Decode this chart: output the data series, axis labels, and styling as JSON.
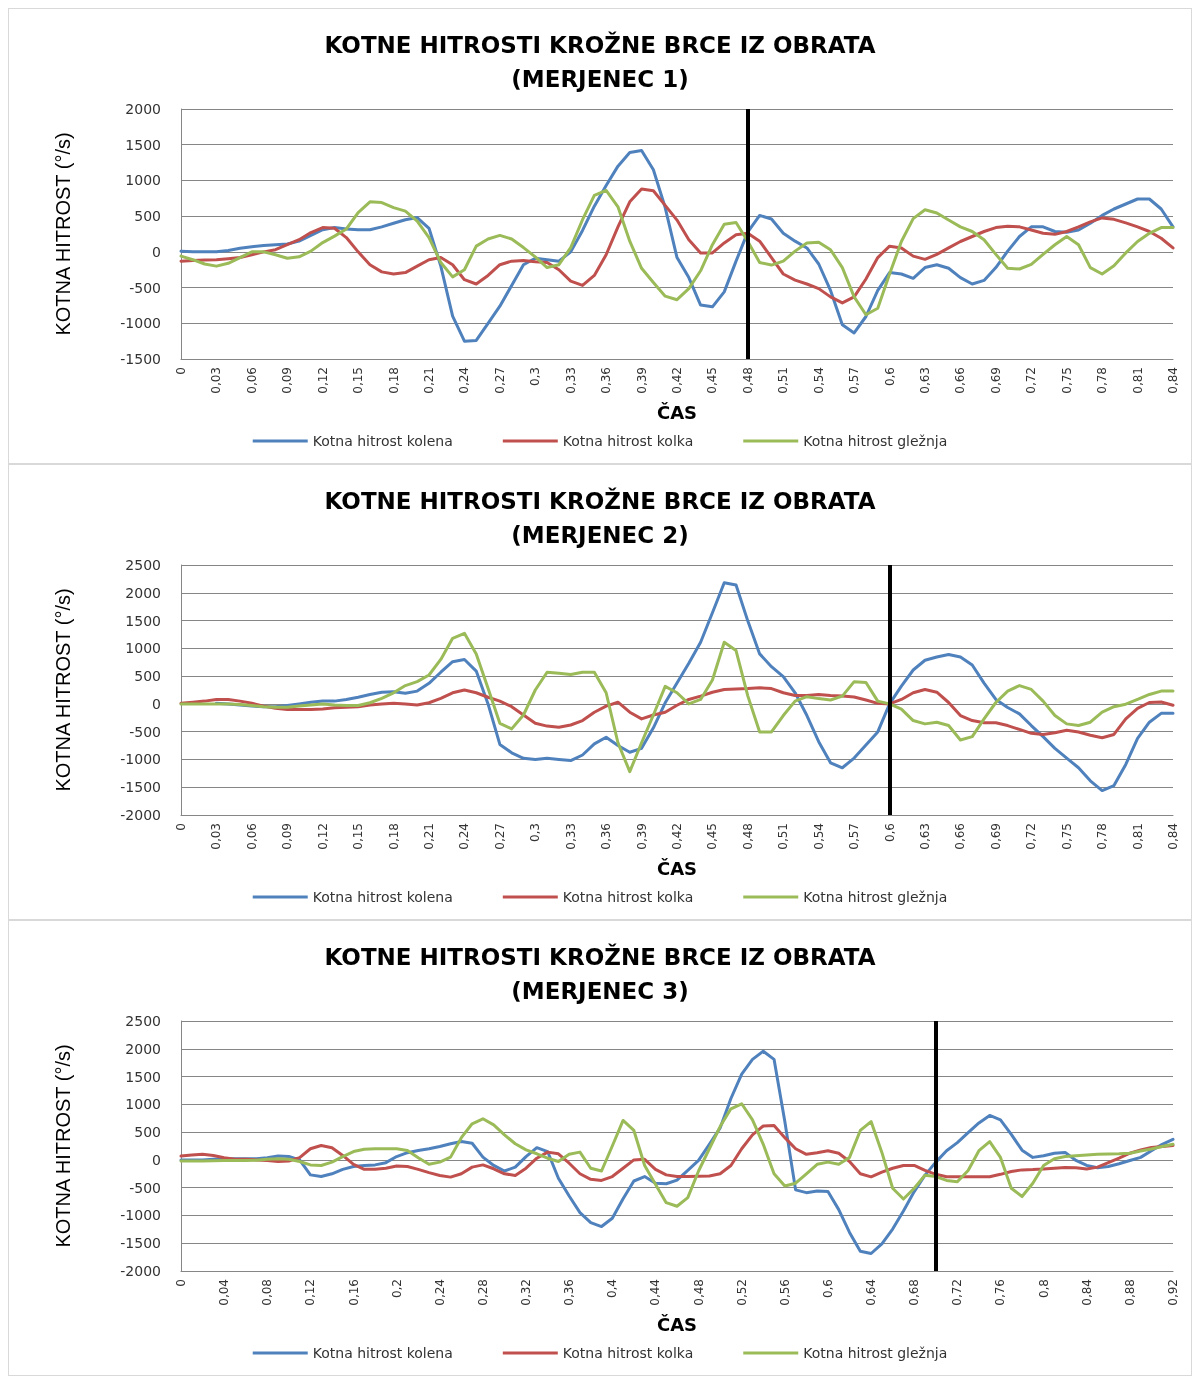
{
  "chart_data": [
    {
      "type": "line",
      "title": "KOTNE HITROSTI KROŽNE BRCE IZ OBRATA\n(MERJENEC 1)",
      "xlabel": "ČAS",
      "ylabel": "KOTNA HITROST (°/s)",
      "x": [
        0,
        0.01,
        0.02,
        0.03,
        0.04,
        0.05,
        0.06,
        0.07,
        0.08,
        0.09,
        0.1,
        0.11,
        0.12,
        0.13,
        0.14,
        0.15,
        0.16,
        0.17,
        0.18,
        0.19,
        0.2,
        0.21,
        0.22,
        0.23,
        0.24,
        0.25,
        0.26,
        0.27,
        0.28,
        0.29,
        0.3,
        0.31,
        0.32,
        0.33,
        0.34,
        0.35,
        0.36,
        0.37,
        0.38,
        0.39,
        0.4,
        0.41,
        0.42,
        0.43,
        0.44,
        0.45,
        0.46,
        0.47,
        0.48,
        0.49,
        0.5,
        0.51,
        0.52,
        0.53,
        0.54,
        0.55,
        0.56,
        0.57,
        0.58,
        0.59,
        0.6,
        0.61,
        0.62,
        0.63,
        0.64,
        0.65,
        0.66,
        0.67,
        0.68,
        0.69,
        0.7,
        0.71,
        0.72,
        0.73,
        0.74,
        0.75,
        0.76,
        0.77,
        0.78,
        0.79,
        0.8,
        0.81,
        0.82,
        0.83,
        0.84
      ],
      "series": [
        {
          "name": "Kotna hitrost kolena",
          "color": "#4f81bd",
          "values": [
            10,
            0,
            0,
            0,
            20,
            50,
            70,
            90,
            100,
            110,
            150,
            230,
            310,
            340,
            320,
            310,
            310,
            350,
            400,
            450,
            480,
            330,
            -200,
            -900,
            -1250,
            -1240,
            -1000,
            -760,
            -470,
            -180,
            -90,
            -110,
            -130,
            0,
            300,
            640,
            930,
            1200,
            1390,
            1420,
            1150,
            620,
            -80,
            -360,
            -745,
            -770,
            -560,
            -130,
            280,
            510,
            460,
            260,
            150,
            55,
            -170,
            -540,
            -1020,
            -1135,
            -905,
            -540,
            -290,
            -310,
            -370,
            -220,
            -180,
            -230,
            -360,
            -450,
            -400,
            -220,
            10,
            215,
            350,
            350,
            285,
            275,
            305,
            400,
            510,
            600,
            670,
            740,
            740,
            600,
            350
          ]
        },
        {
          "name": "Kotna hitrost kolka",
          "color": "#c0504d",
          "values": [
            -130,
            -120,
            -115,
            -110,
            -95,
            -80,
            -40,
            0,
            30,
            100,
            170,
            270,
            340,
            330,
            200,
            0,
            -180,
            -280,
            -310,
            -290,
            -200,
            -110,
            -80,
            -180,
            -390,
            -450,
            -330,
            -180,
            -130,
            -120,
            -140,
            -150,
            -250,
            -410,
            -470,
            -330,
            -40,
            350,
            700,
            880,
            855,
            650,
            445,
            170,
            -15,
            -15,
            125,
            240,
            260,
            150,
            -80,
            -310,
            -395,
            -450,
            -515,
            -630,
            -715,
            -630,
            -380,
            -80,
            80,
            55,
            -60,
            -105,
            -35,
            55,
            145,
            215,
            285,
            340,
            360,
            350,
            305,
            260,
            245,
            285,
            350,
            420,
            475,
            455,
            405,
            350,
            285,
            190,
            55
          ]
        },
        {
          "name": "Kotna hitrost gležnja",
          "color": "#9bbb59",
          "values": [
            -60,
            -110,
            -170,
            -200,
            -160,
            -80,
            0,
            0,
            -40,
            -90,
            -70,
            10,
            130,
            220,
            320,
            550,
            700,
            690,
            620,
            570,
            430,
            200,
            -150,
            -350,
            -250,
            80,
            180,
            230,
            180,
            60,
            -70,
            -220,
            -180,
            60,
            450,
            790,
            860,
            630,
            150,
            -230,
            -430,
            -620,
            -670,
            -515,
            -265,
            100,
            385,
            410,
            145,
            -150,
            -185,
            -130,
            10,
            125,
            135,
            30,
            -220,
            -630,
            -880,
            -790,
            -310,
            145,
            465,
            590,
            545,
            445,
            350,
            285,
            170,
            -35,
            -230,
            -240,
            -175,
            -35,
            100,
            215,
            100,
            -220,
            -310,
            -195,
            -15,
            145,
            260,
            340,
            340
          ]
        }
      ],
      "xlim": [
        0,
        0.84
      ],
      "xticks": [
        {
          "value": 0,
          "label": "0"
        },
        {
          "value": 0.03,
          "label": "0,03"
        },
        {
          "value": 0.06,
          "label": "0,06"
        },
        {
          "value": 0.09,
          "label": "0,09"
        },
        {
          "value": 0.12,
          "label": "0,12"
        },
        {
          "value": 0.15,
          "label": "0,15"
        },
        {
          "value": 0.18,
          "label": "0,18"
        },
        {
          "value": 0.21,
          "label": "0,21"
        },
        {
          "value": 0.24,
          "label": "0,24"
        },
        {
          "value": 0.27,
          "label": "0,27"
        },
        {
          "value": 0.3,
          "label": "0,3"
        },
        {
          "value": 0.33,
          "label": "0,33"
        },
        {
          "value": 0.36,
          "label": "0,36"
        },
        {
          "value": 0.39,
          "label": "0,39"
        },
        {
          "value": 0.42,
          "label": "0,42"
        },
        {
          "value": 0.45,
          "label": "0,45"
        },
        {
          "value": 0.48,
          "label": "0,48"
        },
        {
          "value": 0.51,
          "label": "0,51"
        },
        {
          "value": 0.54,
          "label": "0,54"
        },
        {
          "value": 0.57,
          "label": "0,57"
        },
        {
          "value": 0.6,
          "label": "0,6"
        },
        {
          "value": 0.63,
          "label": "0,63"
        },
        {
          "value": 0.66,
          "label": "0,66"
        },
        {
          "value": 0.69,
          "label": "0,69"
        },
        {
          "value": 0.72,
          "label": "0,72"
        },
        {
          "value": 0.75,
          "label": "0,75"
        },
        {
          "value": 0.78,
          "label": "0,78"
        },
        {
          "value": 0.81,
          "label": "0,81"
        },
        {
          "value": 0.84,
          "label": "0,84"
        }
      ],
      "ylim": [
        -1500,
        2000
      ],
      "yticks": [
        -1500,
        -1000,
        -500,
        0,
        500,
        1000,
        1500,
        2000
      ],
      "ref_lines": [
        {
          "axis": "x",
          "value": 0.48,
          "color": "#000000"
        }
      ],
      "grid": "y",
      "legend": "bottom",
      "marker": "none",
      "line_style": "solid"
    },
    {
      "type": "line",
      "title": "KOTNE HITROSTI KROŽNE BRCE IZ OBRATA\n(MERJENEC 2)",
      "xlabel": "ČAS",
      "ylabel": "KOTNA HITROST (°/s)",
      "x": [
        0,
        0.01,
        0.02,
        0.03,
        0.04,
        0.05,
        0.06,
        0.07,
        0.08,
        0.09,
        0.1,
        0.11,
        0.12,
        0.13,
        0.14,
        0.15,
        0.16,
        0.17,
        0.18,
        0.19,
        0.2,
        0.21,
        0.22,
        0.23,
        0.24,
        0.25,
        0.26,
        0.27,
        0.28,
        0.29,
        0.3,
        0.31,
        0.32,
        0.33,
        0.34,
        0.35,
        0.36,
        0.37,
        0.38,
        0.39,
        0.4,
        0.41,
        0.42,
        0.43,
        0.44,
        0.45,
        0.46,
        0.47,
        0.48,
        0.49,
        0.5,
        0.51,
        0.52,
        0.53,
        0.54,
        0.55,
        0.56,
        0.57,
        0.58,
        0.59,
        0.6,
        0.61,
        0.62,
        0.63,
        0.64,
        0.65,
        0.66,
        0.67,
        0.68,
        0.69,
        0.7,
        0.71,
        0.72,
        0.73,
        0.74,
        0.75,
        0.76,
        0.77,
        0.78,
        0.79,
        0.8,
        0.81,
        0.82,
        0.83,
        0.84
      ],
      "series": [
        {
          "name": "Kotna hitrost kolena",
          "color": "#4f81bd",
          "values": [
            null,
            null,
            null,
            10,
            0,
            -20,
            -40,
            -50,
            -50,
            -30,
            0,
            30,
            50,
            50,
            80,
            120,
            170,
            210,
            220,
            190,
            230,
            370,
            570,
            760,
            800,
            590,
            0,
            -730,
            -880,
            -980,
            -1000,
            -980,
            -1000,
            -1020,
            -920,
            -720,
            -600,
            -750,
            -870,
            -800,
            -430,
            20,
            375,
            730,
            1110,
            1640,
            2180,
            2140,
            1490,
            900,
            670,
            490,
            200,
            -210,
            -680,
            -1060,
            -1150,
            -975,
            -740,
            -505,
            0,
            320,
            610,
            785,
            845,
            890,
            845,
            700,
            375,
            80,
            -65,
            -180,
            -390,
            -590,
            -800,
            -975,
            -1150,
            -1385,
            -1560,
            -1470,
            -1090,
            -620,
            -330,
            -170,
            -170
          ]
        },
        {
          "name": "Kotna hitrost kolka",
          "color": "#c0504d",
          "values": [
            10,
            30,
            50,
            80,
            80,
            50,
            10,
            -40,
            -80,
            -100,
            -100,
            -100,
            -90,
            -70,
            -60,
            -50,
            -20,
            0,
            10,
            0,
            -20,
            20,
            100,
            200,
            250,
            200,
            120,
            50,
            -50,
            -200,
            -350,
            -400,
            -420,
            -380,
            -300,
            -150,
            -40,
            30,
            -150,
            -270,
            -200,
            -150,
            -25,
            80,
            140,
            210,
            260,
            270,
            275,
            290,
            275,
            200,
            150,
            150,
            170,
            150,
            140,
            125,
            70,
            10,
            0,
            80,
            200,
            260,
            210,
            25,
            -210,
            -300,
            -340,
            -340,
            -390,
            -460,
            -530,
            -550,
            -520,
            -475,
            -505,
            -565,
            -610,
            -550,
            -270,
            -80,
            25,
            35,
            -25
          ]
        },
        {
          "name": "Kotna hitrost gležnja",
          "color": "#9bbb59",
          "values": [
            0,
            0,
            0,
            0,
            0,
            -10,
            -30,
            -50,
            -60,
            -60,
            -40,
            -20,
            0,
            -20,
            -30,
            -30,
            20,
            100,
            200,
            330,
            400,
            520,
            800,
            1180,
            1270,
            900,
            280,
            -350,
            -450,
            -200,
            250,
            570,
            550,
            530,
            570,
            570,
            200,
            -700,
            -1220,
            -700,
            -200,
            315,
            200,
            0,
            80,
            430,
            1110,
            960,
            140,
            -505,
            -505,
            -210,
            50,
            130,
            95,
            70,
            140,
            400,
            385,
            50,
            0,
            -95,
            -300,
            -360,
            -330,
            -390,
            -650,
            -590,
            -270,
            25,
            230,
            330,
            260,
            50,
            -210,
            -360,
            -390,
            -330,
            -150,
            -50,
            -5,
            80,
            170,
            230,
            230
          ]
        }
      ],
      "xlim": [
        0,
        0.84
      ],
      "xticks": [
        {
          "value": 0,
          "label": "0"
        },
        {
          "value": 0.03,
          "label": "0,03"
        },
        {
          "value": 0.06,
          "label": "0,06"
        },
        {
          "value": 0.09,
          "label": "0,09"
        },
        {
          "value": 0.12,
          "label": "0,12"
        },
        {
          "value": 0.15,
          "label": "0,15"
        },
        {
          "value": 0.18,
          "label": "0,18"
        },
        {
          "value": 0.21,
          "label": "0,21"
        },
        {
          "value": 0.24,
          "label": "0,24"
        },
        {
          "value": 0.27,
          "label": "0,27"
        },
        {
          "value": 0.3,
          "label": "0,3"
        },
        {
          "value": 0.33,
          "label": "0,33"
        },
        {
          "value": 0.36,
          "label": "0,36"
        },
        {
          "value": 0.39,
          "label": "0,39"
        },
        {
          "value": 0.42,
          "label": "0,42"
        },
        {
          "value": 0.45,
          "label": "0,45"
        },
        {
          "value": 0.48,
          "label": "0,48"
        },
        {
          "value": 0.51,
          "label": "0,51"
        },
        {
          "value": 0.54,
          "label": "0,54"
        },
        {
          "value": 0.57,
          "label": "0,57"
        },
        {
          "value": 0.6,
          "label": "0,6"
        },
        {
          "value": 0.63,
          "label": "0,63"
        },
        {
          "value": 0.66,
          "label": "0,66"
        },
        {
          "value": 0.69,
          "label": "0,69"
        },
        {
          "value": 0.72,
          "label": "0,72"
        },
        {
          "value": 0.75,
          "label": "0,75"
        },
        {
          "value": 0.78,
          "label": "0,78"
        },
        {
          "value": 0.81,
          "label": "0,81"
        },
        {
          "value": 0.84,
          "label": "0,84"
        }
      ],
      "ylim": [
        -2000,
        2500
      ],
      "yticks": [
        -2000,
        -1500,
        -1000,
        -500,
        0,
        500,
        1000,
        1500,
        2000,
        2500
      ],
      "ref_lines": [
        {
          "axis": "x",
          "value": 0.6,
          "color": "#000000"
        }
      ],
      "grid": "y",
      "legend": "bottom",
      "marker": "none",
      "line_style": "solid"
    },
    {
      "type": "line",
      "title": "KOTNE HITROSTI KROŽNE BRCE IZ OBRATA\n(MERJENEC 3)",
      "xlabel": "ČAS",
      "ylabel": "KOTNA HITROST (°/s)",
      "x": [
        0,
        0.01,
        0.02,
        0.03,
        0.04,
        0.05,
        0.06,
        0.07,
        0.08,
        0.09,
        0.1,
        0.11,
        0.12,
        0.13,
        0.14,
        0.15,
        0.16,
        0.17,
        0.18,
        0.19,
        0.2,
        0.21,
        0.22,
        0.23,
        0.24,
        0.25,
        0.26,
        0.27,
        0.28,
        0.29,
        0.3,
        0.31,
        0.32,
        0.33,
        0.34,
        0.35,
        0.36,
        0.37,
        0.38,
        0.39,
        0.4,
        0.41,
        0.42,
        0.43,
        0.44,
        0.45,
        0.46,
        0.47,
        0.48,
        0.49,
        0.5,
        0.51,
        0.52,
        0.53,
        0.54,
        0.55,
        0.56,
        0.57,
        0.58,
        0.59,
        0.6,
        0.61,
        0.62,
        0.63,
        0.64,
        0.65,
        0.66,
        0.67,
        0.68,
        0.69,
        0.7,
        0.71,
        0.72,
        0.73,
        0.74,
        0.75,
        0.76,
        0.77,
        0.78,
        0.79,
        0.8,
        0.81,
        0.82,
        0.83,
        0.84,
        0.85,
        0.86,
        0.87,
        0.88,
        0.89,
        0.9,
        0.91,
        0.92
      ],
      "series": [
        {
          "name": "Kotna hitrost kolena",
          "color": "#4f81bd",
          "values": [
            0,
            0,
            0,
            10,
            20,
            20,
            20,
            20,
            40,
            70,
            60,
            0,
            -270,
            -300,
            -250,
            -170,
            -120,
            -100,
            -90,
            -50,
            60,
            130,
            170,
            200,
            240,
            290,
            330,
            300,
            50,
            -100,
            -200,
            -130,
            60,
            220,
            150,
            -330,
            -650,
            -950,
            -1130,
            -1200,
            -1050,
            -700,
            -380,
            -300,
            -420,
            -430,
            -365,
            -190,
            -10,
            280,
            575,
            1105,
            1545,
            1810,
            1955,
            1810,
            690,
            -540,
            -590,
            -560,
            -570,
            -895,
            -1305,
            -1645,
            -1685,
            -1510,
            -1245,
            -920,
            -570,
            -275,
            -40,
            165,
            310,
            490,
            665,
            800,
            720,
            460,
            175,
            45,
            75,
            120,
            135,
            -10,
            -100,
            -140,
            -120,
            -70,
            -10,
            45,
            165,
            280,
            370
          ]
        },
        {
          "name": "Kotna hitrost kolka",
          "color": "#c0504d",
          "values": [
            70,
            90,
            100,
            80,
            40,
            10,
            10,
            0,
            -10,
            -30,
            -20,
            40,
            200,
            260,
            220,
            80,
            -80,
            -170,
            -170,
            -150,
            -110,
            -120,
            -170,
            -230,
            -280,
            -310,
            -250,
            -130,
            -90,
            -160,
            -250,
            -280,
            -150,
            30,
            140,
            110,
            -60,
            -250,
            -350,
            -370,
            -300,
            -150,
            0,
            10,
            -170,
            -270,
            -300,
            -300,
            -295,
            -290,
            -250,
            -100,
            200,
            450,
            610,
            620,
            400,
            200,
            100,
            130,
            165,
            120,
            -30,
            -250,
            -305,
            -220,
            -150,
            -100,
            -100,
            -190,
            -260,
            -305,
            -305,
            -305,
            -305,
            -305,
            -260,
            -210,
            -180,
            -175,
            -165,
            -150,
            -135,
            -140,
            -165,
            -130,
            -50,
            30,
            120,
            180,
            225,
            240,
            260
          ]
        },
        {
          "name": "Kotna hitrost gležnja",
          "color": "#9bbb59",
          "values": [
            -20,
            -20,
            -20,
            -15,
            -10,
            -10,
            -10,
            -5,
            10,
            20,
            10,
            -30,
            -90,
            -100,
            -40,
            60,
            150,
            190,
            200,
            200,
            200,
            170,
            40,
            -80,
            -40,
            50,
            400,
            650,
            740,
            630,
            450,
            290,
            180,
            110,
            30,
            -30,
            100,
            140,
            -150,
            -200,
            250,
            710,
            530,
            -100,
            -440,
            -770,
            -835,
            -680,
            -200,
            200,
            600,
            920,
            1010,
            720,
            280,
            -250,
            -470,
            -420,
            -250,
            -80,
            -40,
            -80,
            45,
            530,
            690,
            135,
            -510,
            -705,
            -510,
            -275,
            -300,
            -370,
            -395,
            -190,
            165,
            330,
            45,
            -510,
            -660,
            -420,
            -100,
            20,
            60,
            75,
            90,
            100,
            105,
            110,
            120,
            160,
            195,
            240,
            280
          ]
        }
      ],
      "xlim": [
        0,
        0.92
      ],
      "xticks": [
        {
          "value": 0,
          "label": "0"
        },
        {
          "value": 0.04,
          "label": "0,04"
        },
        {
          "value": 0.08,
          "label": "0,08"
        },
        {
          "value": 0.12,
          "label": "0,12"
        },
        {
          "value": 0.16,
          "label": "0,16"
        },
        {
          "value": 0.2,
          "label": "0,2"
        },
        {
          "value": 0.24,
          "label": "0,24"
        },
        {
          "value": 0.28,
          "label": "0,28"
        },
        {
          "value": 0.32,
          "label": "0,32"
        },
        {
          "value": 0.36,
          "label": "0,36"
        },
        {
          "value": 0.4,
          "label": "0,4"
        },
        {
          "value": 0.44,
          "label": "0,44"
        },
        {
          "value": 0.48,
          "label": "0,48"
        },
        {
          "value": 0.52,
          "label": "0,52"
        },
        {
          "value": 0.56,
          "label": "0,56"
        },
        {
          "value": 0.6,
          "label": "0,6"
        },
        {
          "value": 0.64,
          "label": "0,64"
        },
        {
          "value": 0.68,
          "label": "0,68"
        },
        {
          "value": 0.72,
          "label": "0,72"
        },
        {
          "value": 0.76,
          "label": "0,76"
        },
        {
          "value": 0.8,
          "label": "0,8"
        },
        {
          "value": 0.84,
          "label": "0,84"
        },
        {
          "value": 0.88,
          "label": "0,88"
        },
        {
          "value": 0.92,
          "label": "0,92"
        }
      ],
      "ylim": [
        -2000,
        2500
      ],
      "yticks": [
        -2000,
        -1500,
        -1000,
        -500,
        0,
        500,
        1000,
        1500,
        2000,
        2500
      ],
      "ref_lines": [
        {
          "axis": "x",
          "value": 0.7,
          "color": "#000000"
        }
      ],
      "grid": "y",
      "legend": "bottom",
      "marker": "none",
      "line_style": "solid"
    }
  ]
}
